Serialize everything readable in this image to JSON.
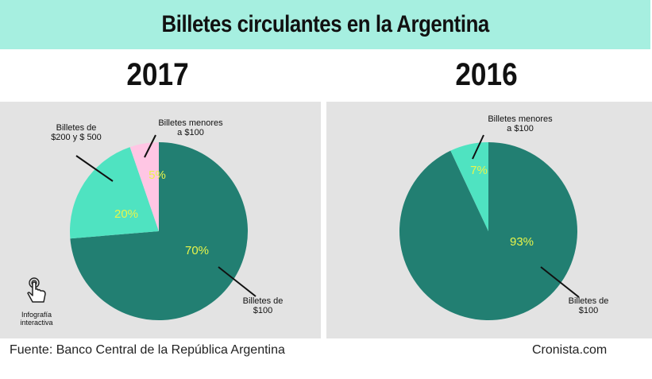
{
  "title": "Billetes circulantes en la Argentina",
  "footer": {
    "source": "Fuente: Banco Central de la República Argentina",
    "credit": "Cronista.com"
  },
  "interactive": {
    "icon": "hand-pointer-icon",
    "label_line1": "Infografía",
    "label_line2": "interactiva"
  },
  "colors": {
    "banner": "#a6efe0",
    "panel": "#e3e3e3",
    "slice_100": "#227f72",
    "slice_200_500": "#4fe3c1",
    "slice_menores": "#ffc6e4",
    "percent_text": "#e9f54a"
  },
  "chart_data": [
    {
      "type": "pie",
      "title": "2017",
      "slices": [
        {
          "name": "Billetes de $100",
          "value": 70,
          "label": "70%",
          "legend_lines": [
            "Billetes de",
            "$100"
          ],
          "color": "#227f72"
        },
        {
          "name": "Billetes de $200 y $ 500",
          "value": 20,
          "label": "20%",
          "legend_lines": [
            "Billetes de",
            "$200 y $ 500"
          ],
          "color": "#4fe3c1"
        },
        {
          "name": "Billetes menores a $100",
          "value": 5,
          "label": "5%",
          "legend_lines": [
            "Billetes menores",
            "a $100"
          ],
          "color": "#ffc6e4"
        }
      ]
    },
    {
      "type": "pie",
      "title": "2016",
      "slices": [
        {
          "name": "Billetes de $100",
          "value": 93,
          "label": "93%",
          "legend_lines": [
            "Billetes de",
            "$100"
          ],
          "color": "#227f72"
        },
        {
          "name": "Billetes menores a $100",
          "value": 7,
          "label": "7%",
          "legend_lines": [
            "Billetes menores",
            "a $100"
          ],
          "color": "#4fe3c1"
        }
      ]
    }
  ]
}
